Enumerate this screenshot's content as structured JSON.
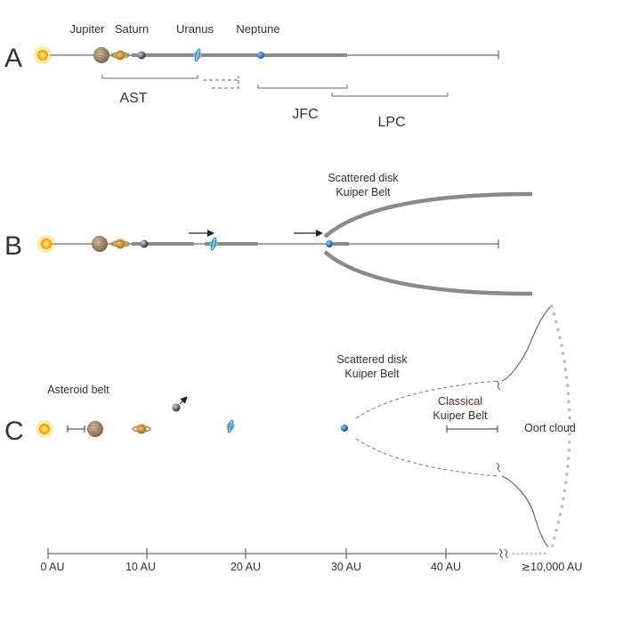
{
  "panels": {
    "a": {
      "letter": "A",
      "planets": {
        "jupiter": "Jupiter",
        "saturn": "Saturn",
        "uranus": "Uranus",
        "neptune": "Neptune"
      },
      "brackets": {
        "ast": "AST",
        "jfc": "JFC",
        "lpc": "LPC"
      }
    },
    "b": {
      "letter": "B",
      "disk_line1": "Scattered disk",
      "disk_line2": "Kuiper Belt"
    },
    "c": {
      "letter": "C",
      "asteroid_belt": "Asteroid belt",
      "disk_line1": "Scattered disk",
      "disk_line2": "Kuiper Belt",
      "classical_line1": "Classical",
      "classical_line2": "Kuiper Belt",
      "oort": "Oort cloud"
    }
  },
  "axis": {
    "ticks": [
      "0 AU",
      "10 AU",
      "20 AU",
      "30 AU",
      "40 AU"
    ],
    "far_tick": "≳10,000 AU"
  },
  "colors": {
    "sun": "#f6b21b",
    "jupiter": "#a88a6c",
    "saturn": "#d49a3a",
    "neptune": "#2f78c8",
    "uranus": "#6fb6d8",
    "rock": "#555555",
    "band": "#8a8a8a",
    "oort_dots": "#bdbdbd"
  }
}
